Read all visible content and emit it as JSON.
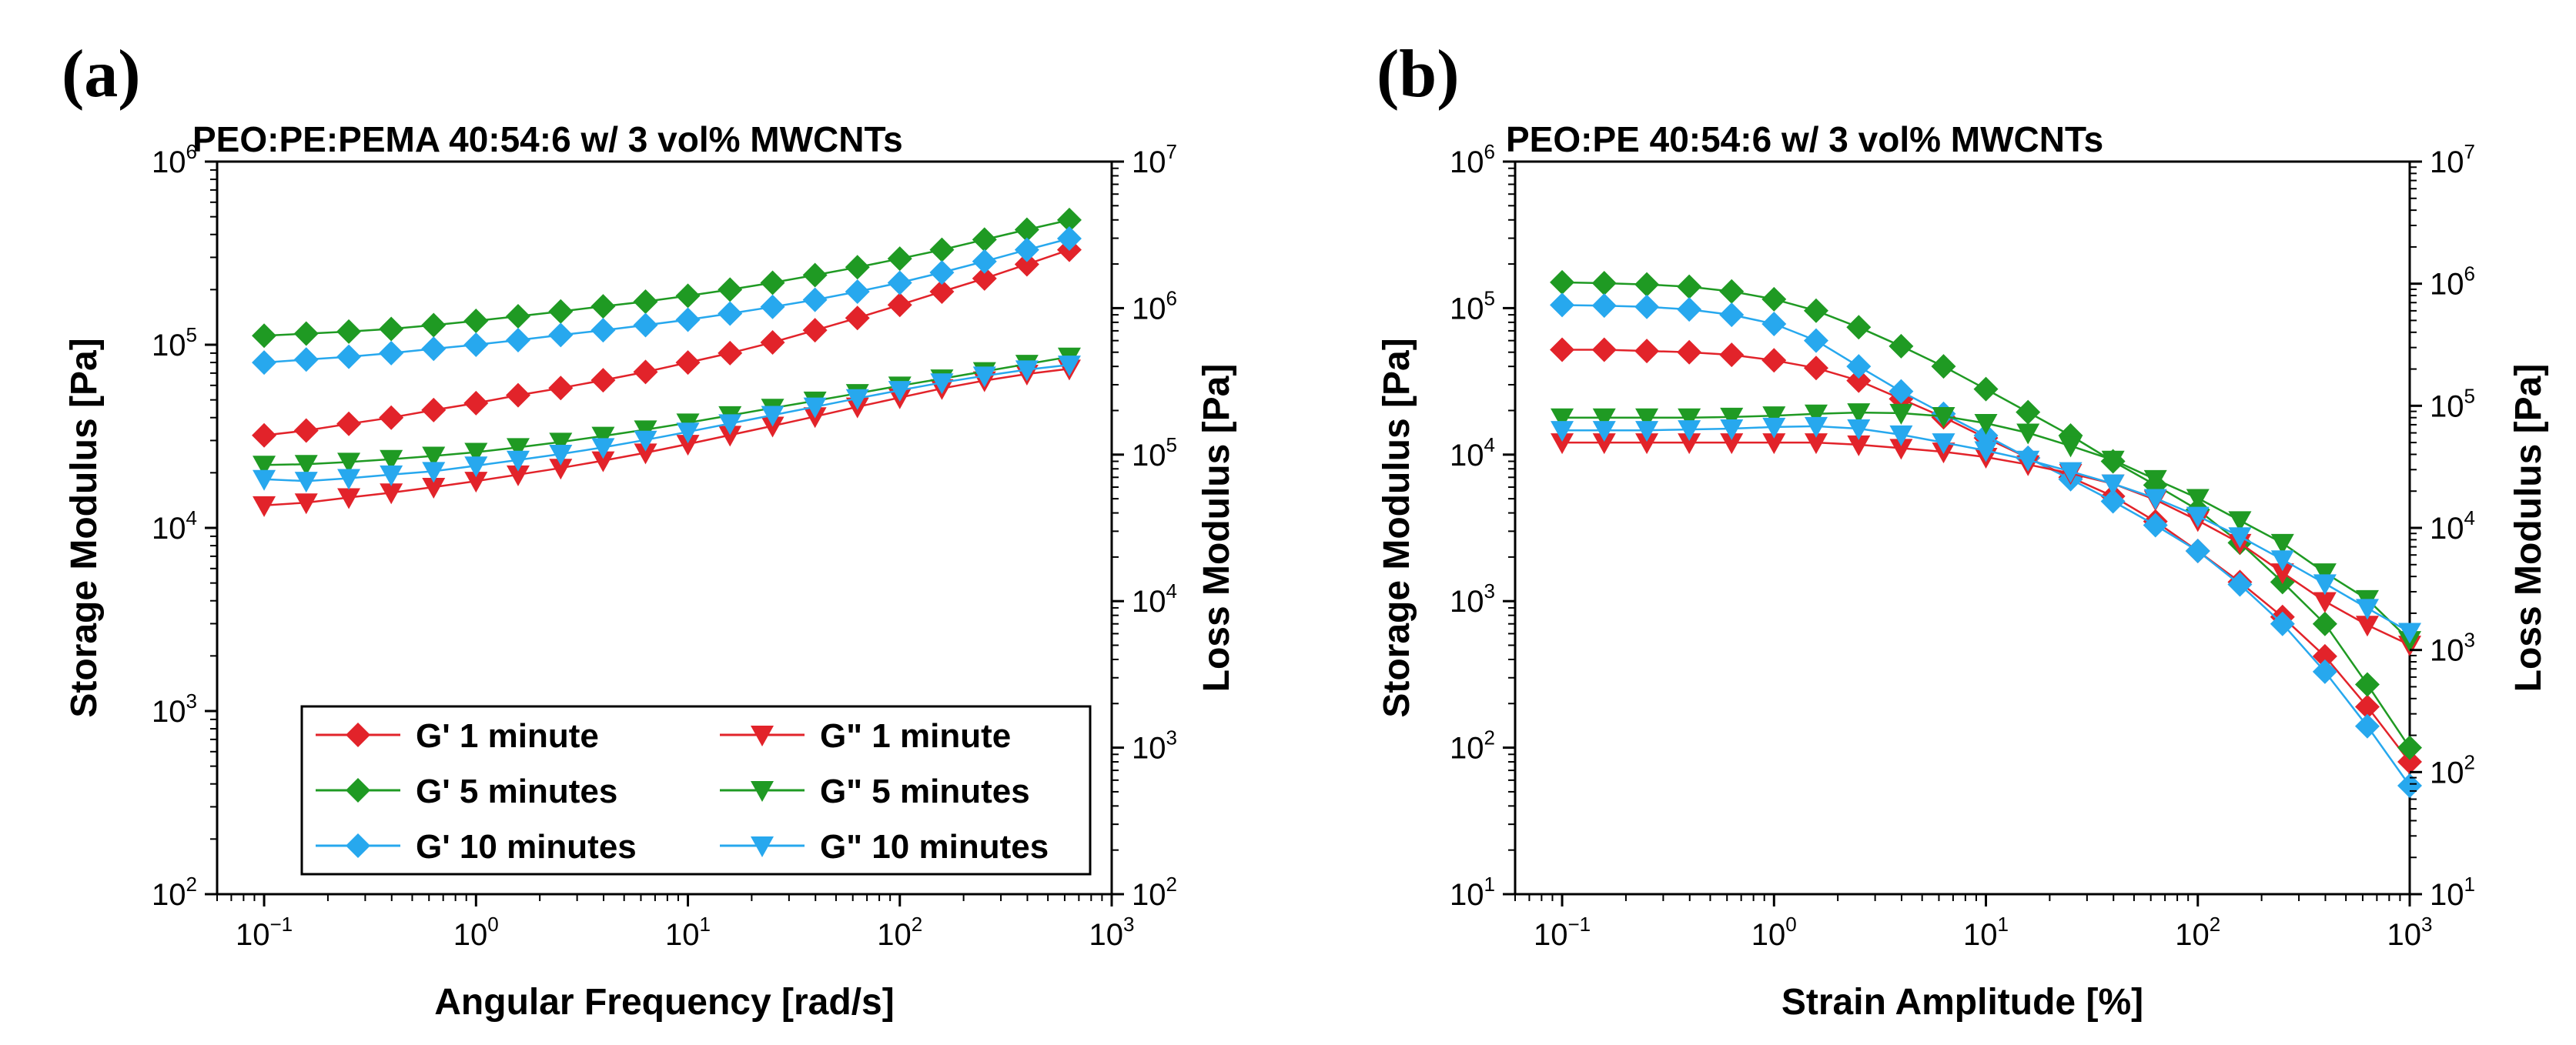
{
  "colors": {
    "red": "#e2232a",
    "green": "#1f9a23",
    "blue": "#27a8ee",
    "axis": "#000000"
  },
  "chart_data": [
    {
      "type": "line",
      "panel_label": "(a)",
      "title": "PEO:PE:PEMA 40:54:6 w/ 3 vol% MWCNTs",
      "xlabel": "Angular Frequency [rad/s]",
      "ylabel": "Storage Modulus [Pa]",
      "ylabel_right": "Loss Modulus [Pa]",
      "xscale": "log",
      "yscale": "log",
      "xlim": [
        0.06,
        1000
      ],
      "ylim": [
        100,
        1000000
      ],
      "ylim_right": [
        100,
        10000000
      ],
      "x_ticks": [
        "10",
        "10",
        "10",
        "10",
        "10"
      ],
      "x_tick_exps": [
        "−1",
        "0",
        "1",
        "2",
        "3"
      ],
      "y_ticks": [
        "10",
        "10",
        "10",
        "10",
        "10"
      ],
      "y_tick_exps": [
        "2",
        "3",
        "4",
        "5",
        "6"
      ],
      "y_right_ticks": [
        "10",
        "10",
        "10",
        "10",
        "10",
        "10"
      ],
      "y_right_tick_exps": [
        "2",
        "3",
        "4",
        "5",
        "6",
        "7"
      ],
      "x": [
        0.1,
        0.158,
        0.251,
        0.398,
        0.631,
        1,
        1.58,
        2.51,
        3.98,
        6.31,
        10,
        15.8,
        25.1,
        39.8,
        63.1,
        100,
        158,
        251,
        398,
        631
      ],
      "legend_position": "bottom-right",
      "legend_columns": 2,
      "series": [
        {
          "name": "G' 1 minute",
          "color": "red",
          "marker": "diamond",
          "axis": "left",
          "values": [
            32000,
            34000,
            37000,
            40000,
            44000,
            48000,
            53000,
            58000,
            64000,
            71000,
            80000,
            90000,
            103000,
            120000,
            140000,
            165000,
            195000,
            230000,
            275000,
            330000
          ]
        },
        {
          "name": "G' 5 minutes",
          "color": "green",
          "marker": "diamond",
          "axis": "left",
          "values": [
            112000,
            115000,
            118000,
            122000,
            128000,
            135000,
            143000,
            152000,
            162000,
            172000,
            185000,
            200000,
            218000,
            240000,
            265000,
            295000,
            330000,
            375000,
            425000,
            480000
          ]
        },
        {
          "name": "G' 10 minutes",
          "color": "blue",
          "marker": "diamond",
          "axis": "left",
          "values": [
            80000,
            83000,
            86000,
            90000,
            95000,
            100000,
            106000,
            113000,
            120000,
            128000,
            137000,
            148000,
            161000,
            176000,
            195000,
            218000,
            248000,
            285000,
            330000,
            380000
          ]
        },
        {
          "name": "G\" 1 minute",
          "color": "red",
          "marker": "triangle-down",
          "axis": "right",
          "values": [
            45000,
            47000,
            51000,
            55000,
            60000,
            66000,
            73000,
            81000,
            91000,
            103000,
            118000,
            136000,
            157000,
            182000,
            212000,
            245000,
            283000,
            320000,
            355000,
            385000
          ]
        },
        {
          "name": "G\" 5 minutes",
          "color": "green",
          "marker": "triangle-down",
          "axis": "right",
          "values": [
            85000,
            86000,
            89000,
            93000,
            98000,
            104000,
            112000,
            122000,
            134000,
            148000,
            165000,
            185000,
            208000,
            233000,
            262000,
            295000,
            330000,
            370000,
            415000,
            465000
          ]
        },
        {
          "name": "G\" 10 minutes",
          "color": "blue",
          "marker": "triangle-down",
          "axis": "right",
          "values": [
            68000,
            66000,
            69000,
            73000,
            77000,
            84000,
            92000,
            101000,
            112000,
            126000,
            143000,
            163000,
            186000,
            212000,
            242000,
            275000,
            310000,
            345000,
            380000,
            410000
          ]
        }
      ]
    },
    {
      "type": "line",
      "panel_label": "(b)",
      "title": "PEO:PE 40:54:6 w/ 3 vol% MWCNTs",
      "xlabel": "Strain Amplitude [%]",
      "ylabel": "Storage Modulus [Pa]",
      "ylabel_right": "Loss Modulus [Pa]",
      "xscale": "log",
      "yscale": "log",
      "xlim": [
        0.06,
        1000
      ],
      "ylim": [
        10,
        1000000
      ],
      "ylim_right": [
        10,
        10000000
      ],
      "x_ticks": [
        "10",
        "10",
        "10",
        "10",
        "10"
      ],
      "x_tick_exps": [
        "−1",
        "0",
        "1",
        "2",
        "3"
      ],
      "y_ticks": [
        "10",
        "10",
        "10",
        "10",
        "10",
        "10"
      ],
      "y_tick_exps": [
        "1",
        "2",
        "3",
        "4",
        "5",
        "6"
      ],
      "y_right_ticks": [
        "10",
        "10",
        "10",
        "10",
        "10",
        "10",
        "10"
      ],
      "y_right_tick_exps": [
        "1",
        "2",
        "3",
        "4",
        "5",
        "6",
        "7"
      ],
      "x": [
        0.1,
        0.158,
        0.251,
        0.398,
        0.631,
        1,
        1.58,
        2.51,
        3.98,
        6.31,
        10,
        15.8,
        25.1,
        39.8,
        63.1,
        100,
        158,
        251,
        398,
        631,
        1000
      ],
      "legend_position": "none",
      "series": [
        {
          "name": "G' 1 minute",
          "color": "red",
          "marker": "diamond",
          "axis": "left",
          "values": [
            52000,
            52000,
            51000,
            50000,
            48000,
            44000,
            39000,
            32000,
            24000,
            18000,
            13000,
            9500,
            7000,
            5200,
            3500,
            2200,
            1350,
            780,
            420,
            190,
            80
          ]
        },
        {
          "name": "G' 5 minutes",
          "color": "green",
          "marker": "diamond",
          "axis": "left",
          "values": [
            150000,
            148000,
            145000,
            140000,
            130000,
            115000,
            96000,
            74000,
            55000,
            40000,
            28000,
            19500,
            13500,
            9000,
            6200,
            4200,
            2500,
            1350,
            700,
            270,
            100
          ]
        },
        {
          "name": "G' 10 minutes",
          "color": "blue",
          "marker": "diamond",
          "axis": "left",
          "values": [
            105000,
            104000,
            102000,
            98000,
            90000,
            78000,
            60000,
            40000,
            27000,
            19000,
            13500,
            9500,
            6800,
            4800,
            3300,
            2200,
            1300,
            700,
            330,
            140,
            55
          ]
        },
        {
          "name": "G\" 1 minute",
          "color": "red",
          "marker": "triangle-down",
          "axis": "right",
          "values": [
            50000,
            50000,
            50000,
            50000,
            50000,
            50000,
            50000,
            48000,
            45000,
            42000,
            38000,
            33000,
            28000,
            23000,
            17000,
            11500,
            7500,
            4300,
            2500,
            1600,
            1100
          ]
        },
        {
          "name": "G\" 5 minutes",
          "color": "green",
          "marker": "triangle-down",
          "axis": "right",
          "values": [
            80000,
            80000,
            80000,
            80000,
            81000,
            83000,
            86000,
            88000,
            87000,
            82000,
            72000,
            60000,
            47000,
            36000,
            25000,
            17500,
            11500,
            7500,
            4300,
            2600,
            1200
          ]
        },
        {
          "name": "G\" 10 minutes",
          "color": "blue",
          "marker": "triangle-down",
          "axis": "right",
          "values": [
            63000,
            63000,
            63000,
            64000,
            65000,
            67000,
            68000,
            65000,
            58000,
            50000,
            43000,
            36000,
            29000,
            23000,
            17500,
            12500,
            8500,
            5500,
            3500,
            2200,
            1400
          ]
        }
      ]
    }
  ]
}
